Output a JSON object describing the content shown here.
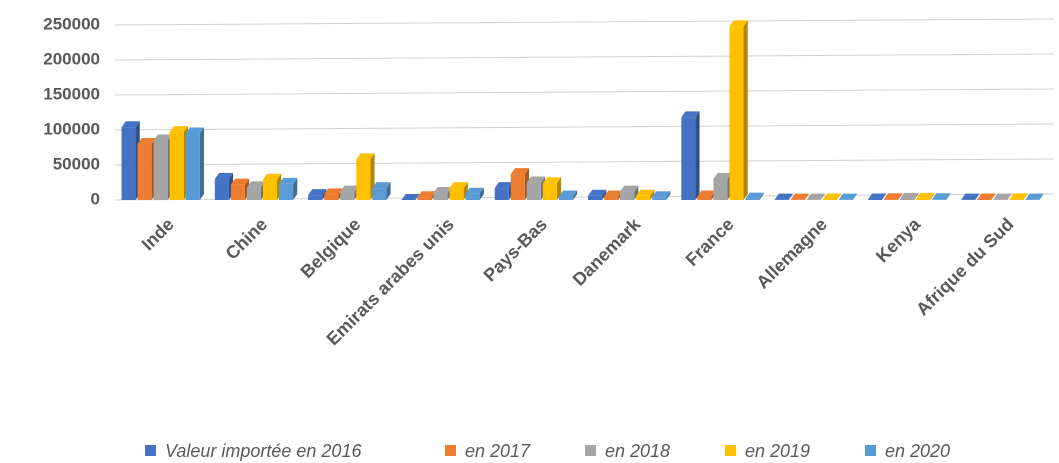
{
  "chart_data": {
    "type": "bar",
    "categories": [
      "Inde",
      "Chine",
      "Belgique",
      "Emirats arabes unis",
      "Pays-Bas",
      "Danemark",
      "France",
      "Allemagne",
      "Kenya",
      "Afrique du Sud"
    ],
    "series": [
      {
        "name": "Valeur importée en 2016",
        "color": "#4472c4",
        "values": [
          104000,
          30000,
          7000,
          0,
          17000,
          6000,
          118000,
          500,
          800,
          500
        ]
      },
      {
        "name": "en 2017",
        "color": "#ed7d31",
        "values": [
          80000,
          22000,
          8000,
          4000,
          37000,
          5000,
          5000,
          500,
          1000,
          700
        ]
      },
      {
        "name": "en 2018",
        "color": "#a5a5a5",
        "values": [
          85000,
          18000,
          12000,
          10000,
          25000,
          12000,
          30000,
          500,
          1500,
          500
        ]
      },
      {
        "name": "en 2019",
        "color": "#ffc000",
        "values": [
          97000,
          29000,
          58000,
          17000,
          24000,
          6000,
          248000,
          800,
          1500,
          900
        ]
      },
      {
        "name": "en 2020",
        "color": "#5b9bd5",
        "values": [
          95000,
          23000,
          17000,
          9000,
          5000,
          4000,
          2000,
          500,
          1000,
          500
        ]
      }
    ],
    "ylim": [
      0,
      250000
    ],
    "yticks": [
      0,
      50000,
      100000,
      150000,
      200000,
      250000
    ],
    "grid": true,
    "legend": "bottom"
  }
}
